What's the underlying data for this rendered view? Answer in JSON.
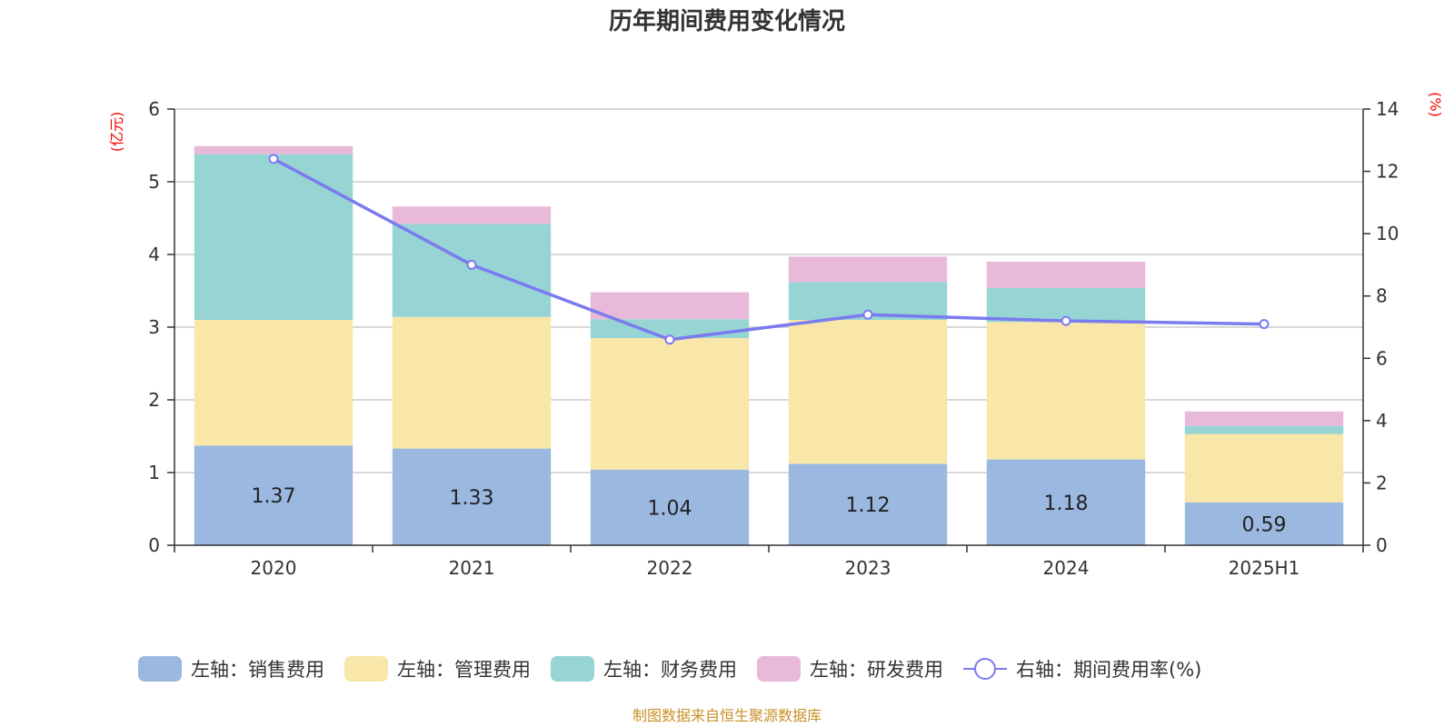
{
  "chart_data": {
    "type": "bar",
    "stacked": true,
    "title": "历年期间费用变化情况",
    "categories": [
      "2020",
      "2021",
      "2022",
      "2023",
      "2024",
      "2025H1"
    ],
    "left_axis": {
      "unit_label": "(亿元)",
      "range": [
        0,
        6
      ],
      "ticks": [
        "0",
        "1",
        "2",
        "3",
        "4",
        "5",
        "6"
      ]
    },
    "right_axis": {
      "unit_label": "(%)",
      "range": [
        0,
        14
      ],
      "ticks": [
        "0",
        "2",
        "4",
        "6",
        "8",
        "10",
        "12",
        "14"
      ]
    },
    "series": [
      {
        "name": "左轴：销售费用",
        "axis": "left",
        "type": "bar",
        "color": "#9bb8e1",
        "values": [
          1.37,
          1.33,
          1.04,
          1.12,
          1.18,
          0.59
        ],
        "labels": [
          "1.37",
          "1.33",
          "1.04",
          "1.12",
          "1.18",
          "0.59"
        ]
      },
      {
        "name": "左轴：管理费用",
        "axis": "left",
        "type": "bar",
        "color": "#f8e7a8",
        "values": [
          1.73,
          1.81,
          1.81,
          1.98,
          1.89,
          0.94
        ]
      },
      {
        "name": "左轴：财务费用",
        "axis": "left",
        "type": "bar",
        "color": "#97d4d4",
        "values": [
          2.28,
          1.28,
          0.26,
          0.52,
          0.47,
          0.11
        ]
      },
      {
        "name": "左轴：研发费用",
        "axis": "left",
        "type": "bar",
        "color": "#e8b9d9",
        "values": [
          0.11,
          0.24,
          0.37,
          0.35,
          0.36,
          0.2
        ]
      },
      {
        "name": "右轴：期间费用率(%)",
        "axis": "right",
        "type": "line",
        "color": "#7b7bf0",
        "values": [
          12.4,
          9.0,
          6.6,
          7.4,
          7.2,
          7.1
        ]
      }
    ],
    "grid": true,
    "legend_position": "bottom"
  },
  "source": "制图数据来自恒生聚源数据库"
}
